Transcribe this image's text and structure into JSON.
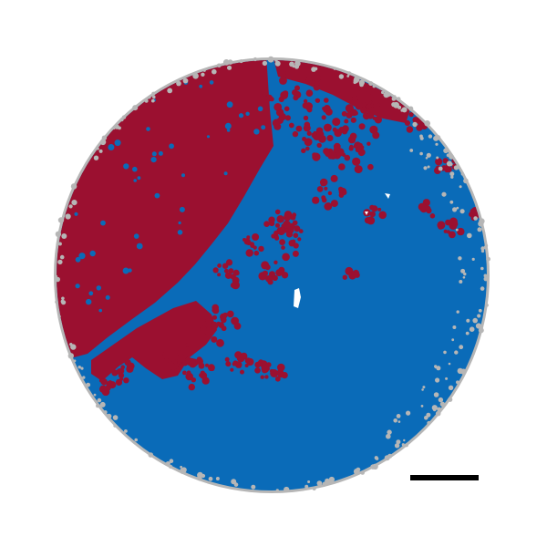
{
  "image": {
    "background_color": "#ffffff",
    "colors": {
      "blue": "#0a6bb8",
      "red": "#9b1030",
      "gray_edge": "#b6b6b6",
      "white_gap": "#ffffff",
      "scale_bar": "#000000"
    }
  }
}
